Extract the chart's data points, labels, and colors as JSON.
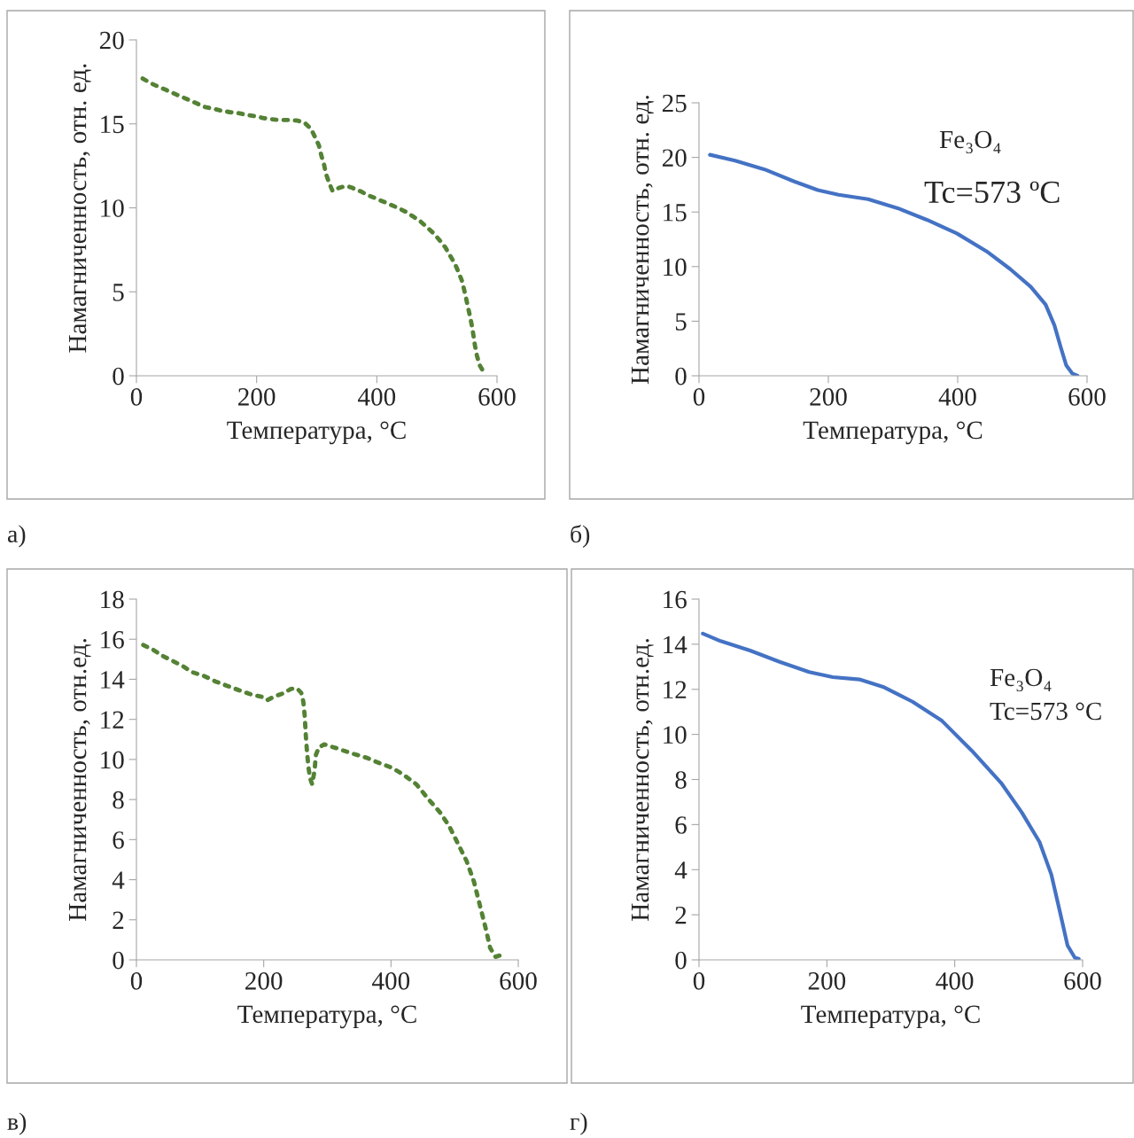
{
  "chart_data": [
    {
      "type": "line",
      "xlabel": "Температура, °C",
      "ylabel": "Намагниченность, отн. ед.",
      "xlim": [
        0,
        600
      ],
      "xticks": [
        0,
        200,
        400,
        600
      ],
      "ylim": [
        0,
        20
      ],
      "yticks": [
        0,
        5,
        10,
        15,
        20
      ],
      "grid": false,
      "line_style": "dotted",
      "annotations": [
        "а)"
      ],
      "series": [
        {
          "color": "#548235",
          "x": [
            10.3,
            25,
            37.4,
            50.6,
            63,
            76,
            88.5,
            101.7,
            114.5,
            127.8,
            141.6,
            155.3,
            169,
            183.9,
            198,
            212,
            225.7,
            239,
            253,
            267.5,
            280,
            290.5,
            297.4,
            303.8,
            307.8,
            312,
            315.6,
            320.5,
            326.4,
            337.7,
            349.5,
            358.8,
            368,
            374.6,
            383.9,
            396,
            409,
            422.3,
            435.5,
            448.3,
            460.6,
            473,
            483.9,
            494.6,
            504.5,
            513.9,
            521.3,
            529.6,
            535.5,
            541.4,
            545.3,
            548.8,
            552.2,
            555.7,
            558.6,
            561,
            563.5,
            566.5,
            570.9,
            578.2
          ],
          "values": [
            17.7,
            17.4,
            17.2,
            17.0,
            16.8,
            16.6,
            16.4,
            16.2,
            16.0,
            15.9,
            15.78,
            15.7,
            15.64,
            15.53,
            15.45,
            15.34,
            15.27,
            15.23,
            15.23,
            15.2,
            15.06,
            14.7,
            14.2,
            13.7,
            13.1,
            12.6,
            12.0,
            11.5,
            11.0,
            11.2,
            11.3,
            11.2,
            11.05,
            10.96,
            10.76,
            10.6,
            10.4,
            10.2,
            9.99,
            9.76,
            9.48,
            9.18,
            8.83,
            8.48,
            8.07,
            7.65,
            7.19,
            6.7,
            6.21,
            5.68,
            5.13,
            4.57,
            4.0,
            3.45,
            2.9,
            2.34,
            1.76,
            1.21,
            0.65,
            0.19
          ]
        }
      ]
    },
    {
      "type": "line",
      "xlabel": "Температура, °C",
      "ylabel": "Намагниченность, отн. ед.",
      "xlim": [
        0,
        600
      ],
      "xticks": [
        0,
        200,
        400,
        600
      ],
      "ylim": [
        0,
        25
      ],
      "yticks": [
        0,
        5,
        10,
        15,
        20,
        25
      ],
      "grid": false,
      "line_style": "solid",
      "annotations": [
        "б)",
        "Fe₃O₄",
        "Tc=573 ºC"
      ],
      "series": [
        {
          "color": "#4472c4",
          "x": [
            16.9,
            55.8,
            101.5,
            147.2,
            183.8,
            215.8,
            261.5,
            307.3,
            353,
            398.7,
            444.4,
            481,
            513,
            535.9,
            549.6,
            558.8,
            567.9,
            577,
            585.3
          ],
          "values": [
            20.24,
            19.7,
            18.9,
            17.8,
            17.0,
            16.58,
            16.17,
            15.35,
            14.27,
            13.04,
            11.41,
            9.78,
            8.15,
            6.52,
            4.62,
            2.72,
            0.95,
            0.22,
            0.0
          ]
        }
      ]
    },
    {
      "type": "line",
      "xlabel": "Температура, °C",
      "ylabel": "Намагниченность, отн.ед.",
      "xlim": [
        0,
        600
      ],
      "xticks": [
        0,
        200,
        400,
        600
      ],
      "ylim": [
        0,
        18
      ],
      "yticks": [
        0,
        2,
        4,
        6,
        8,
        10,
        12,
        14,
        16,
        18
      ],
      "grid": false,
      "line_style": "dotted",
      "annotations": [
        "в)"
      ],
      "series": [
        {
          "color": "#548235",
          "x": [
            10.7,
            26.9,
            40.8,
            54.8,
            73.3,
            87.2,
            105.8,
            124.4,
            142.9,
            161.5,
            180,
            198.6,
            205.6,
            217.2,
            231,
            242.7,
            252,
            258.9,
            262.2,
            264.5,
            266,
            268.2,
            270.5,
            272.9,
            276.1,
            279.8,
            282.1,
            286.8,
            295.1,
            314.6,
            337.8,
            361,
            384.2,
            402.8,
            421.3,
            439.9,
            458.5,
            477,
            491,
            504.9,
            518.8,
            530.4,
            539.7,
            549,
            555.9,
            564.3,
            570.8
          ],
          "values": [
            15.71,
            15.46,
            15.17,
            14.95,
            14.65,
            14.36,
            14.17,
            13.89,
            13.67,
            13.45,
            13.25,
            13.11,
            12.96,
            13.15,
            13.3,
            13.52,
            13.55,
            13.33,
            12.89,
            12.15,
            11.27,
            10.31,
            9.57,
            9.06,
            8.76,
            9.43,
            10.24,
            10.6,
            10.75,
            10.56,
            10.31,
            10.09,
            9.79,
            9.57,
            9.2,
            8.76,
            8.03,
            7.36,
            6.7,
            5.82,
            4.93,
            3.9,
            2.72,
            1.55,
            0.59,
            0.15,
            0.22
          ]
        }
      ]
    },
    {
      "type": "line",
      "xlabel": "Температура, °C",
      "ylabel": "Намагниченность, отн.ед.",
      "xlim": [
        0,
        600
      ],
      "xticks": [
        0,
        200,
        400,
        600
      ],
      "ylim": [
        0,
        16
      ],
      "yticks": [
        0,
        2,
        4,
        6,
        8,
        10,
        12,
        14,
        16
      ],
      "grid": false,
      "line_style": "solid",
      "annotations": [
        "г)",
        "Fe₃O₄",
        "Tc=573 °C"
      ],
      "series": [
        {
          "color": "#4472c4",
          "x": [
            6,
            33.7,
            79.9,
            126.1,
            172.3,
            209.2,
            250.8,
            287.8,
            334,
            380.1,
            426.3,
            472.5,
            504.8,
            532.6,
            551,
            564.9,
            576.4,
            588,
            594
          ],
          "values": [
            14.47,
            14.14,
            13.72,
            13.22,
            12.77,
            12.54,
            12.44,
            12.11,
            11.45,
            10.6,
            9.29,
            7.85,
            6.54,
            5.23,
            3.79,
            2.08,
            0.64,
            0.09,
            0.05
          ]
        }
      ]
    }
  ]
}
